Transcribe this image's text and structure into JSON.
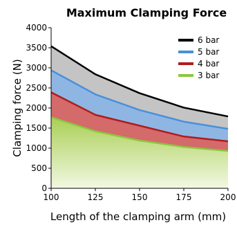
{
  "chart_data": {
    "type": "area",
    "title": "Maximum Clamping Force",
    "xlabel": "Length of the clamping arm (mm)",
    "ylabel": "Clamping force (N)",
    "x": [
      100,
      125,
      150,
      175,
      200
    ],
    "xticks": [
      "100",
      "125",
      "150",
      "175",
      "200"
    ],
    "yticks": [
      "0",
      "500",
      "1000",
      "1500",
      "2000",
      "2500",
      "3000",
      "3500",
      "4000"
    ],
    "xlim": [
      100,
      200
    ],
    "ylim": [
      0,
      4000
    ],
    "grid": false,
    "legend_position": "top-right",
    "series": [
      {
        "name": "6 bar",
        "color": "#000000",
        "fill": "#c4c4c4",
        "values": [
          3540,
          2840,
          2370,
          2010,
          1790
        ]
      },
      {
        "name": "5 bar",
        "color": "#4a90d9",
        "fill": "#8fb6e3",
        "values": [
          2940,
          2340,
          1950,
          1660,
          1480
        ]
      },
      {
        "name": "4 bar",
        "color": "#b01c1c",
        "fill": "#d46a6a",
        "values": [
          2390,
          1830,
          1560,
          1290,
          1170
        ]
      },
      {
        "name": "3 bar",
        "color": "#8cc63e",
        "fill": "#b6d772",
        "values": [
          1770,
          1420,
          1190,
          1030,
          930
        ]
      }
    ]
  }
}
